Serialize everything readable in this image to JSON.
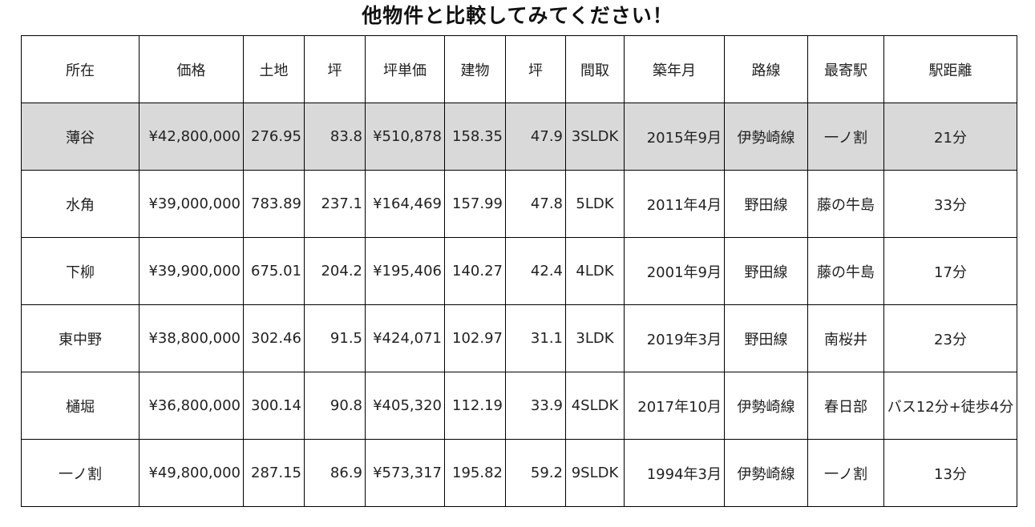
{
  "page": {
    "title": "他物件と比較してみてください！"
  },
  "table": {
    "headers": [
      "所在",
      "価格",
      "土地",
      "坪",
      "坪単価",
      "建物",
      "坪",
      "間取",
      "築年月",
      "路線",
      "最寄駅",
      "駅距離"
    ],
    "rows": [
      [
        "薄谷",
        "¥42,800,000",
        "276.95",
        "83.8",
        "¥510,878",
        "158.35",
        "47.9",
        "3SLDK",
        "2015年9月",
        "伊勢崎線",
        "一ノ割",
        "21分"
      ],
      [
        "水角",
        "¥39,000,000",
        "783.89",
        "237.1",
        "¥164,469",
        "157.99",
        "47.8",
        "5LDK",
        "2011年4月",
        "野田線",
        "藤の牛島",
        "33分"
      ],
      [
        "下柳",
        "¥39,900,000",
        "675.01",
        "204.2",
        "¥195,406",
        "140.27",
        "42.4",
        "4LDK",
        "2001年9月",
        "野田線",
        "藤の牛島",
        "17分"
      ],
      [
        "東中野",
        "¥38,800,000",
        "302.46",
        "91.5",
        "¥424,071",
        "102.97",
        "31.1",
        "3LDK",
        "2019年3月",
        "野田線",
        "南桜井",
        "23分"
      ],
      [
        "樋堀",
        "¥36,800,000",
        "300.14",
        "90.8",
        "¥405,320",
        "112.19",
        "33.9",
        "4SLDK",
        "2017年10月",
        "伊勢崎線",
        "春日部",
        "バス12分+徒歩4分"
      ],
      [
        "一ノ割",
        "¥49,800,000",
        "287.15",
        "86.9",
        "¥573,317",
        "195.82",
        "59.2",
        "9SLDK",
        "1994年3月",
        "伊勢崎線",
        "一ノ割",
        "13分"
      ]
    ]
  },
  "colors": {
    "highlight_row": "#d9d9d9",
    "border": "#000000"
  }
}
